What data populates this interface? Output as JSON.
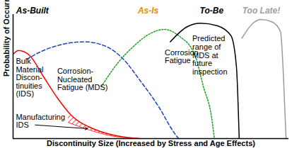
{
  "chart_data": {
    "type": "line",
    "x_label": "Discontinuity Size (Increased by Stress and Age Effects)",
    "y_label": "Probability of Occurrence",
    "xlim": [
      0,
      100
    ],
    "ylim": [
      0,
      100
    ],
    "tick_labels": false,
    "grid": false,
    "phases": [
      {
        "label": "As-Built",
        "x": 7,
        "color": "#000000"
      },
      {
        "label": "As-Is",
        "x": 49,
        "color": "#f08a00"
      },
      {
        "label": "To-Be",
        "x": 72,
        "color": "#000000"
      },
      {
        "label": "Too Late!",
        "x": 90,
        "color": "#a0a0a0"
      }
    ],
    "series": [
      {
        "type": "area",
        "color": "#ff0000",
        "x": [
          20,
          29,
          36,
          46
        ],
        "values": [
          20,
          8,
          3,
          0
        ],
        "lower": [
          13,
          6,
          2,
          0
        ]
      },
      {
        "type": "line",
        "color": "#ff0000",
        "line_style": "solid",
        "x": [
          0,
          2,
          6,
          11,
          16,
          21,
          29,
          36,
          46
        ],
        "values": [
          68,
          71,
          67,
          50,
          33,
          19,
          8,
          3,
          0
        ]
      },
      {
        "type": "line",
        "color": "#1e40c8",
        "line_style": "dashed",
        "x": [
          5,
          11,
          18,
          26,
          34,
          40,
          46,
          53,
          58,
          60
        ],
        "values": [
          64,
          71,
          76,
          78,
          74,
          64,
          47,
          25,
          6,
          0
        ]
      },
      {
        "type": "line",
        "color": "#22a022",
        "line_style": "dotted",
        "x": [
          32,
          38,
          44,
          50,
          55,
          60,
          66,
          69,
          72,
          73
        ],
        "values": [
          42,
          61,
          75,
          85,
          88,
          83,
          67,
          42,
          17,
          0
        ]
      },
      {
        "type": "line",
        "color": "#000000",
        "line_style": "solid",
        "x": [
          57,
          63,
          68,
          74,
          79,
          81,
          82
        ],
        "values": [
          78,
          90,
          93,
          91,
          83,
          58,
          0
        ]
      },
      {
        "type": "line",
        "color": "#9a9a9a",
        "line_style": "solid",
        "x": [
          83,
          87,
          90,
          94,
          97,
          98,
          99
        ],
        "values": [
          81,
          93,
          96,
          94,
          86,
          53,
          0
        ]
      }
    ],
    "annotations": [
      {
        "text": "Bulk\nMaterial\nDiscon-\ntinuities\n(IDS)",
        "x": 1,
        "y": 65
      },
      {
        "text": "Manufacturing\nIDS",
        "x": 1,
        "y": 20,
        "arrow_from": {
          "x": 8,
          "y": 11
        },
        "arrow_to": {
          "x": 27,
          "y": 8
        }
      },
      {
        "text": "Corrosion-\nNucleated\nFatigue (MDS)",
        "x": 16,
        "y": 57
      },
      {
        "text": "Corrosion\nFatigue",
        "x": 55,
        "y": 72
      },
      {
        "text": "Predicted\nrange of\nMDS at\nfuture\ninspection",
        "x": 65,
        "y": 83
      }
    ]
  }
}
